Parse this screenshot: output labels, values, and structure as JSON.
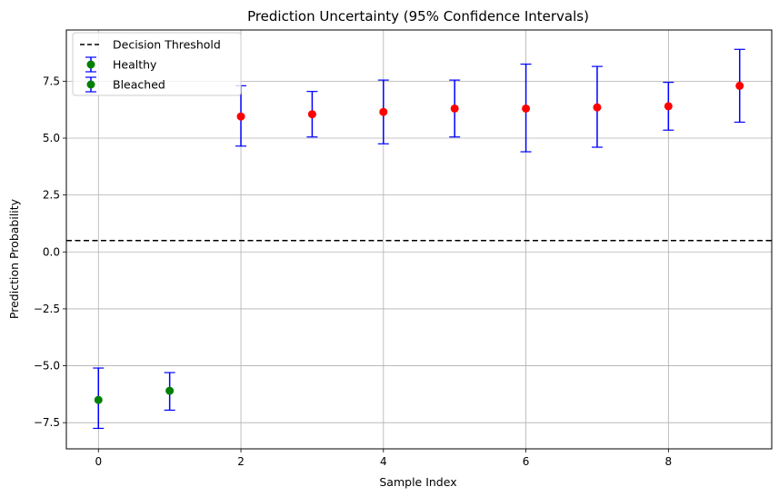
{
  "chart_data": {
    "type": "scatter",
    "title": "Prediction Uncertainty (95% Confidence Intervals)",
    "xlabel": "Sample Index",
    "ylabel": "Prediction Probability",
    "xlim": [
      -0.45,
      9.45
    ],
    "ylim": [
      -8.65,
      9.75
    ],
    "xticks": [
      0,
      2,
      4,
      6,
      8
    ],
    "xtick_labels": [
      "0",
      "2",
      "4",
      "6",
      "8"
    ],
    "yticks": [
      -7.5,
      -5.0,
      -2.5,
      0.0,
      2.5,
      5.0,
      7.5
    ],
    "ytick_labels": [
      "−7.5",
      "−5.0",
      "−2.5",
      "0.0",
      "2.5",
      "5.0",
      "7.5"
    ],
    "grid": true,
    "legend_position": "top-left",
    "threshold": {
      "name": "Decision Threshold",
      "y": 0.5,
      "color": "#000000",
      "style": "dashed"
    },
    "series": [
      {
        "name": "Healthy",
        "color": "#008000",
        "error_color": "#0000ff",
        "points": [
          {
            "x": 0,
            "y": -6.5,
            "lower": -7.75,
            "upper": -5.1
          },
          {
            "x": 1,
            "y": -6.1,
            "lower": -6.95,
            "upper": -5.3
          }
        ]
      },
      {
        "name": "Bleached",
        "color": "#ff0000",
        "legend_color": "#008000",
        "error_color": "#0000ff",
        "points": [
          {
            "x": 2,
            "y": 5.95,
            "lower": 4.65,
            "upper": 7.3
          },
          {
            "x": 3,
            "y": 6.05,
            "lower": 5.05,
            "upper": 7.05
          },
          {
            "x": 4,
            "y": 6.15,
            "lower": 4.75,
            "upper": 7.55
          },
          {
            "x": 5,
            "y": 6.3,
            "lower": 5.05,
            "upper": 7.55
          },
          {
            "x": 6,
            "y": 6.3,
            "lower": 4.4,
            "upper": 8.25
          },
          {
            "x": 7,
            "y": 6.35,
            "lower": 4.6,
            "upper": 8.15
          },
          {
            "x": 8,
            "y": 6.4,
            "lower": 5.35,
            "upper": 7.45
          },
          {
            "x": 9,
            "y": 7.3,
            "lower": 5.7,
            "upper": 8.9
          }
        ]
      }
    ]
  }
}
